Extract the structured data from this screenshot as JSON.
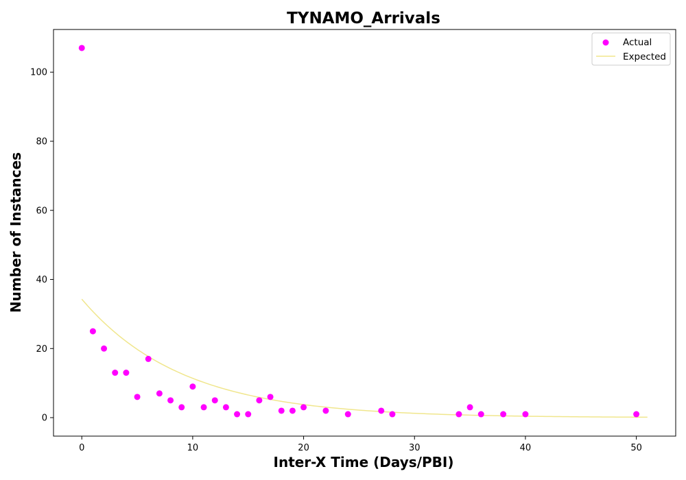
{
  "chart_data": {
    "type": "scatter",
    "title": "TYNAMO_Arrivals",
    "xlabel": "Inter-X Time (Days/PBI)",
    "ylabel": "Number of Instances",
    "xlim": [
      -2.55,
      53.55
    ],
    "ylim": [
      -5.35,
      112.35
    ],
    "xticks": [
      0,
      10,
      20,
      30,
      40,
      50
    ],
    "yticks": [
      0,
      20,
      40,
      60,
      80,
      100
    ],
    "grid": false,
    "legend_position": "upper right",
    "series": [
      {
        "name": "Actual",
        "kind": "scatter",
        "color": "#ff00ff",
        "points": [
          [
            0,
            107
          ],
          [
            1,
            25
          ],
          [
            2,
            20
          ],
          [
            3,
            13
          ],
          [
            4,
            13
          ],
          [
            5,
            6
          ],
          [
            6,
            17
          ],
          [
            7,
            7
          ],
          [
            8,
            5
          ],
          [
            9,
            3
          ],
          [
            10,
            9
          ],
          [
            11,
            3
          ],
          [
            12,
            5
          ],
          [
            13,
            3
          ],
          [
            14,
            1
          ],
          [
            15,
            1
          ],
          [
            16,
            5
          ],
          [
            17,
            6
          ],
          [
            18,
            2
          ],
          [
            19,
            2
          ],
          [
            20,
            3
          ],
          [
            22,
            2
          ],
          [
            24,
            1
          ],
          [
            27,
            2
          ],
          [
            28,
            1
          ],
          [
            34,
            1
          ],
          [
            35,
            3
          ],
          [
            36,
            1
          ],
          [
            38,
            1
          ],
          [
            40,
            1
          ],
          [
            50,
            1
          ]
        ]
      },
      {
        "name": "Expected",
        "kind": "line",
        "color": "#f0e68c",
        "curve": {
          "model": "exponential",
          "amplitude": 34.3,
          "rate": 0.1103,
          "x_range": [
            0,
            51
          ]
        }
      }
    ]
  }
}
